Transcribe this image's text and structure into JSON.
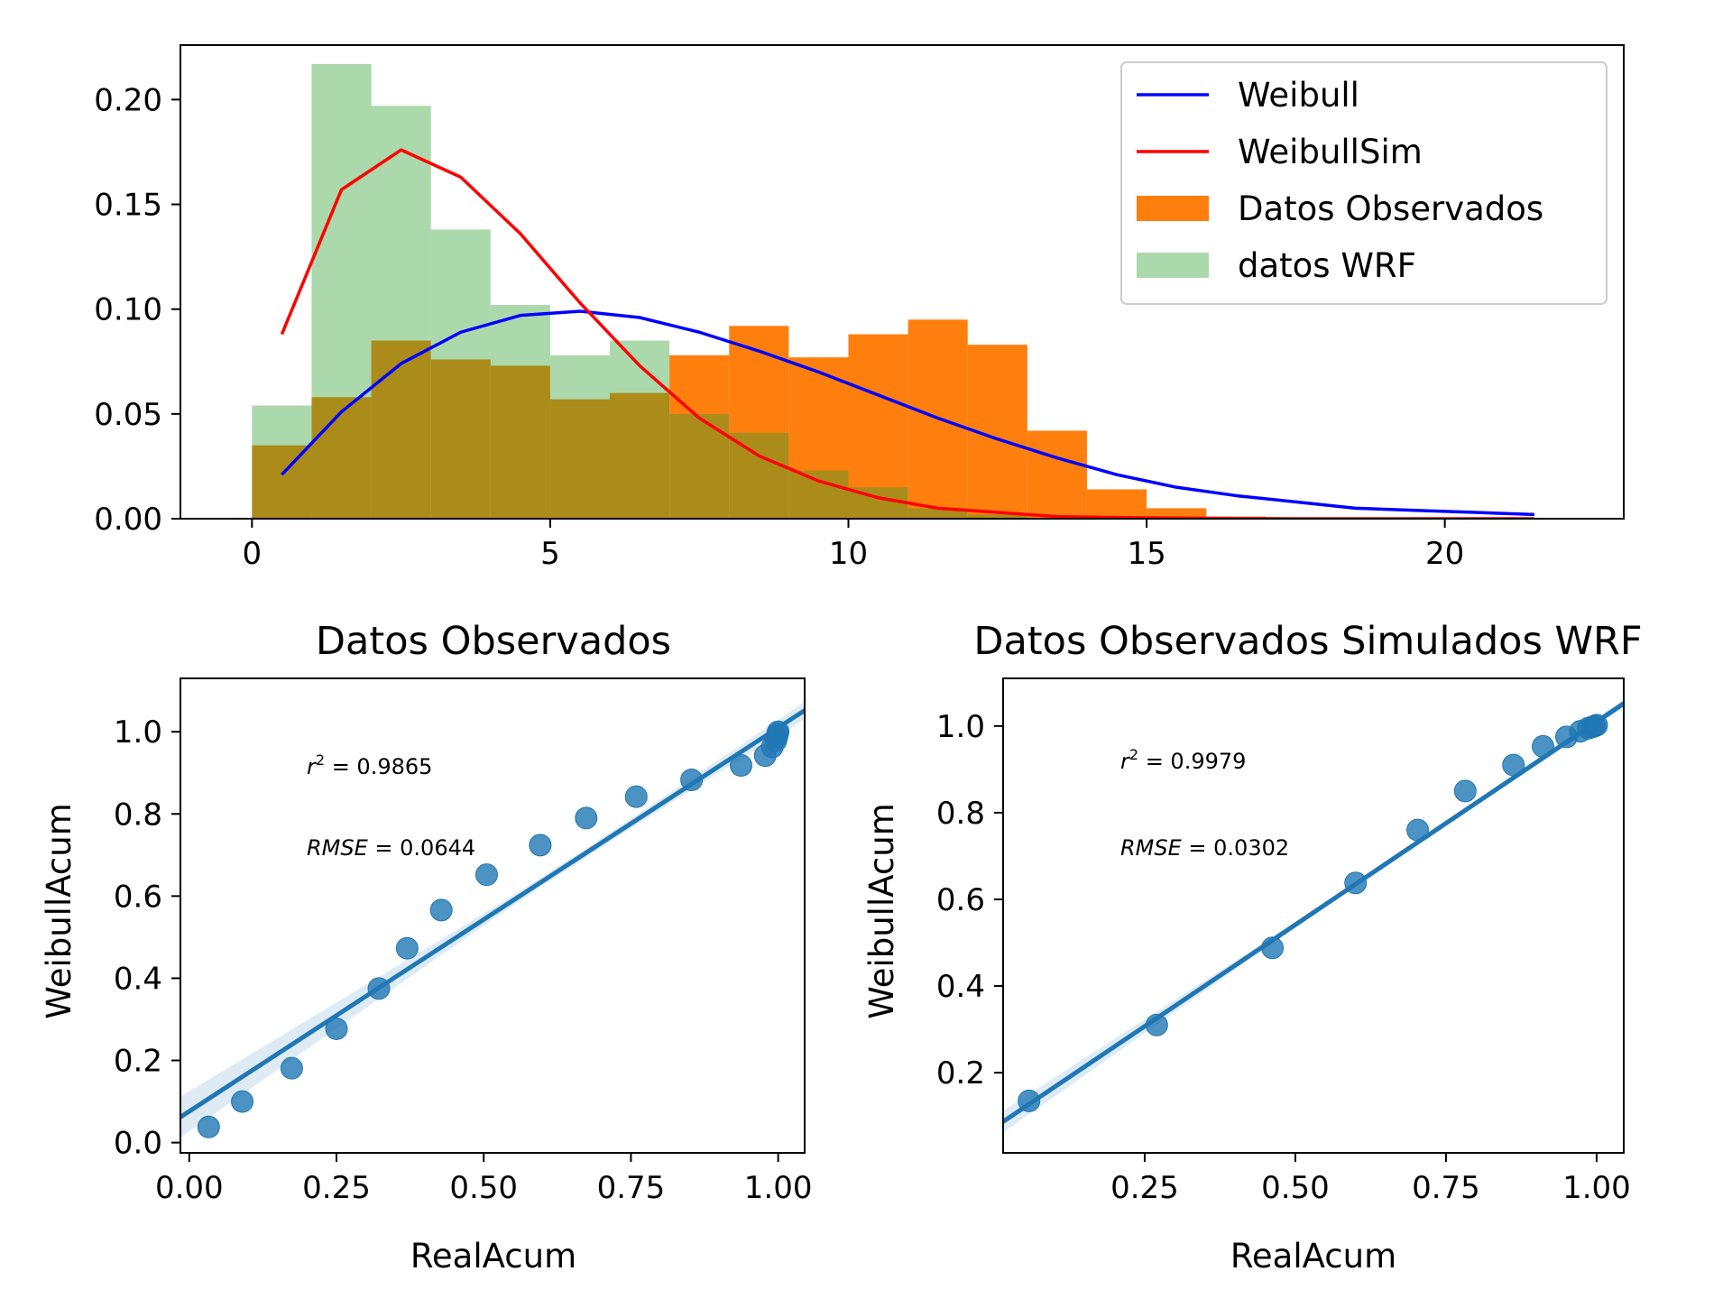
{
  "chart_data": [
    {
      "type": "bar",
      "subtype": "histogram-with-lines",
      "title": "",
      "xlabel": "",
      "ylabel": "",
      "xlim": [
        -1.2,
        23
      ],
      "ylim": [
        0,
        0.226
      ],
      "xticks": [
        0,
        5,
        10,
        15,
        20
      ],
      "yticks": [
        0.0,
        0.05,
        0.1,
        0.15,
        0.2
      ],
      "legend_position": "upper-right",
      "bin_edges": [
        0,
        1,
        2,
        3,
        4,
        5,
        6,
        7,
        8,
        9,
        10,
        11,
        12,
        13,
        14,
        15,
        16,
        17,
        18,
        19,
        20,
        21,
        22
      ],
      "histograms": [
        {
          "name": "Datos Observados",
          "color": "#ff7f0e",
          "values": [
            0.035,
            0.058,
            0.085,
            0.076,
            0.073,
            0.057,
            0.06,
            0.078,
            0.092,
            0.077,
            0.088,
            0.095,
            0.083,
            0.042,
            0.014,
            0.005,
            0.001,
            0.0005,
            0.0003,
            0.0002,
            0.0001,
            0.0001
          ]
        },
        {
          "name": "datos WRF",
          "color": "#2ca02c",
          "alpha": 0.4,
          "values": [
            0.054,
            0.217,
            0.197,
            0.138,
            0.102,
            0.078,
            0.085,
            0.05,
            0.041,
            0.023,
            0.015,
            0.005,
            0.002,
            0,
            0,
            0,
            0,
            0,
            0,
            0,
            0,
            0
          ]
        }
      ],
      "series": [
        {
          "name": "Weibull",
          "color": "#0000ff",
          "x": [
            0.5,
            1.5,
            2.5,
            3.5,
            4.5,
            5.5,
            6.5,
            7.5,
            8.5,
            9.5,
            10.5,
            11.5,
            12.5,
            13.5,
            14.5,
            15.5,
            16.5,
            17.5,
            18.5,
            19.5,
            20.5,
            21.5
          ],
          "y": [
            0.021,
            0.051,
            0.074,
            0.089,
            0.097,
            0.099,
            0.096,
            0.089,
            0.08,
            0.07,
            0.059,
            0.048,
            0.038,
            0.029,
            0.021,
            0.015,
            0.011,
            0.008,
            0.005,
            0.004,
            0.003,
            0.002
          ]
        },
        {
          "name": "WeibullSim",
          "color": "#ff0000",
          "x": [
            0.5,
            1.5,
            2.5,
            3.5,
            4.5,
            5.5,
            6.5,
            7.5,
            8.5,
            9.5,
            10.5,
            11.5,
            12.5,
            13.5,
            14.5,
            15.5,
            16.5,
            17.5,
            18.5,
            19.5,
            20.5,
            21.5
          ],
          "y": [
            0.088,
            0.157,
            0.176,
            0.163,
            0.136,
            0.103,
            0.073,
            0.048,
            0.03,
            0.018,
            0.01,
            0.005,
            0.003,
            0.001,
            0.0006,
            0.0003,
            0.0001,
            0,
            0,
            0,
            0,
            0
          ]
        }
      ]
    },
    {
      "type": "scatter",
      "title": "Datos Observados",
      "xlabel": "RealAcum",
      "ylabel": "WeibullAcum",
      "xlim": [
        -0.015,
        1.045
      ],
      "ylim": [
        -0.025,
        1.13
      ],
      "xticks": [
        "0.00",
        "0.25",
        "0.50",
        "0.75",
        "1.00"
      ],
      "yticks": [
        "0.0",
        "0.2",
        "0.4",
        "0.6",
        "0.8",
        "1.0"
      ],
      "color": "#1f77b4",
      "points": [
        [
          0.033,
          0.038
        ],
        [
          0.09,
          0.1
        ],
        [
          0.174,
          0.181
        ],
        [
          0.25,
          0.277
        ],
        [
          0.322,
          0.375
        ],
        [
          0.37,
          0.473
        ],
        [
          0.428,
          0.566
        ],
        [
          0.505,
          0.652
        ],
        [
          0.596,
          0.724
        ],
        [
          0.674,
          0.79
        ],
        [
          0.759,
          0.842
        ],
        [
          0.853,
          0.883
        ],
        [
          0.937,
          0.918
        ],
        [
          0.978,
          0.942
        ],
        [
          0.99,
          0.963
        ],
        [
          0.996,
          0.978
        ],
        [
          0.998,
          0.988
        ],
        [
          0.999,
          0.995
        ],
        [
          1.0,
          1.0
        ]
      ],
      "fit_line": [
        [
          -0.015,
          0.062
        ],
        [
          1.045,
          1.052
        ]
      ],
      "ci_band": {
        "x": [
          -0.015,
          0.1,
          0.2,
          0.3,
          0.4,
          0.5,
          0.6,
          0.7,
          0.8,
          0.9,
          1.0,
          1.045
        ],
        "halfwidth": [
          0.05,
          0.042,
          0.035,
          0.028,
          0.021,
          0.015,
          0.011,
          0.011,
          0.013,
          0.016,
          0.019,
          0.021
        ]
      },
      "annotations": {
        "r2_label": "r",
        "r2_sup": "2",
        "r2_value": " = 0.9865",
        "rmse_label": "RMSE",
        "rmse_value": " = 0.0644"
      }
    },
    {
      "type": "scatter",
      "title": "Datos Observados Simulados WRF",
      "xlabel": "RealAcum",
      "ylabel": "WeibullAcum",
      "xlim": [
        0.015,
        1.045
      ],
      "ylim": [
        0.015,
        1.11
      ],
      "xticks": [
        "0.25",
        "0.50",
        "0.75",
        "1.00"
      ],
      "yticks": [
        "0.2",
        "0.4",
        "0.6",
        "0.8",
        "1.0"
      ],
      "color": "#1f77b4",
      "points": [
        [
          0.058,
          0.135
        ],
        [
          0.27,
          0.31
        ],
        [
          0.462,
          0.488
        ],
        [
          0.6,
          0.638
        ],
        [
          0.703,
          0.76
        ],
        [
          0.782,
          0.85
        ],
        [
          0.862,
          0.91
        ],
        [
          0.911,
          0.953
        ],
        [
          0.95,
          0.975
        ],
        [
          0.973,
          0.988
        ],
        [
          0.986,
          0.995
        ],
        [
          0.993,
          0.998
        ],
        [
          0.997,
          1.0
        ],
        [
          1.0,
          1.002
        ]
      ],
      "fit_line": [
        [
          0.015,
          0.087
        ],
        [
          1.045,
          1.052
        ]
      ],
      "ci_band": {
        "x": [
          0.015,
          0.1,
          0.2,
          0.3,
          0.4,
          0.5,
          0.6,
          0.7,
          0.8,
          0.9,
          1.0,
          1.045
        ],
        "halfwidth": [
          0.025,
          0.022,
          0.018,
          0.014,
          0.01,
          0.007,
          0.006,
          0.006,
          0.007,
          0.008,
          0.009,
          0.01
        ]
      },
      "annotations": {
        "r2_label": "r",
        "r2_sup": "2",
        "r2_value": " = 0.9979",
        "rmse_label": "RMSE",
        "rmse_value": " = 0.0302"
      }
    }
  ]
}
